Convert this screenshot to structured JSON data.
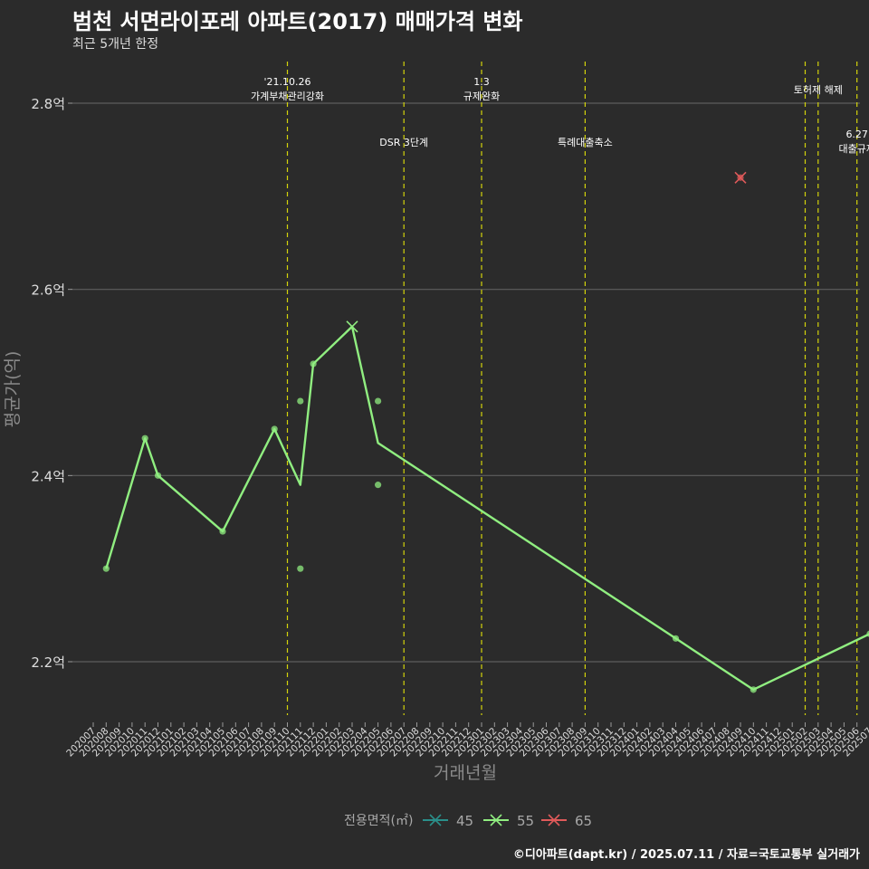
{
  "chart_data": {
    "type": "line",
    "title": "범천 서면라이포레 아파트(2017) 매매가격 변화",
    "subtitle": "최근 5개년 한정",
    "xlabel": "거래년월",
    "ylabel": "평균가(억)",
    "caption": "©디아파트(dapt.kr) / 2025.07.11 / 자료=국토교통부 실거래가",
    "x_ticks": [
      "202007",
      "202008",
      "202009",
      "202010",
      "202011",
      "202012",
      "202101",
      "202102",
      "202103",
      "202104",
      "202105",
      "202106",
      "202107",
      "202108",
      "202109",
      "202110",
      "202111",
      "202112",
      "202201",
      "202202",
      "202203",
      "202204",
      "202205",
      "202206",
      "202207",
      "202208",
      "202209",
      "202210",
      "202211",
      "202212",
      "202301",
      "202302",
      "202303",
      "202304",
      "202305",
      "202306",
      "202307",
      "202308",
      "202309",
      "202310",
      "202311",
      "202312",
      "202401",
      "202402",
      "202403",
      "202404",
      "202405",
      "202406",
      "202407",
      "202408",
      "202409",
      "202410",
      "202411",
      "202412",
      "202501",
      "202502",
      "202503",
      "202504",
      "202505",
      "202506",
      "202507"
    ],
    "y_ticks": [
      2.2,
      2.4,
      2.6,
      2.8
    ],
    "y_tick_labels": [
      "2.2억",
      "2.4억",
      "2.6억",
      "2.8억"
    ],
    "ylim": [
      2.14,
      2.85
    ],
    "legend": {
      "title": "전용면적(㎡)",
      "position": "bottom",
      "items": [
        {
          "label": "45",
          "color": "#2a8f8a"
        },
        {
          "label": "55",
          "color": "#90ee80"
        },
        {
          "label": "65",
          "color": "#e05a5a"
        }
      ]
    },
    "series": [
      {
        "name": "55",
        "color": "#90ee80",
        "line": [
          {
            "x": "202008",
            "y": 2.3
          },
          {
            "x": "202011",
            "y": 2.44
          },
          {
            "x": "202012",
            "y": 2.4
          },
          {
            "x": "202105",
            "y": 2.34
          },
          {
            "x": "202109",
            "y": 2.45
          },
          {
            "x": "202111",
            "y": 2.39
          },
          {
            "x": "202112",
            "y": 2.52
          },
          {
            "x": "202203",
            "y": 2.56
          },
          {
            "x": "202205",
            "y": 2.435
          },
          {
            "x": "202404",
            "y": 2.225
          },
          {
            "x": "202410",
            "y": 2.17
          },
          {
            "x": "202507",
            "y": 2.23
          }
        ],
        "points": [
          {
            "x": "202008",
            "y": 2.3
          },
          {
            "x": "202011",
            "y": 2.44
          },
          {
            "x": "202012",
            "y": 2.4
          },
          {
            "x": "202105",
            "y": 2.34
          },
          {
            "x": "202109",
            "y": 2.45
          },
          {
            "x": "202111",
            "y": 2.48
          },
          {
            "x": "202111",
            "y": 2.3
          },
          {
            "x": "202112",
            "y": 2.52
          },
          {
            "x": "202205",
            "y": 2.48
          },
          {
            "x": "202205",
            "y": 2.39
          },
          {
            "x": "202404",
            "y": 2.225
          },
          {
            "x": "202410",
            "y": 2.17
          },
          {
            "x": "202507",
            "y": 2.23
          }
        ],
        "cross_points": [
          {
            "x": "202203",
            "y": 2.56
          }
        ]
      },
      {
        "name": "65",
        "color": "#e05a5a",
        "points": [
          {
            "x": "202409",
            "y": 2.72
          }
        ],
        "cross_points": [
          {
            "x": "202409",
            "y": 2.72
          }
        ]
      }
    ],
    "events": [
      {
        "x": "202110",
        "lines": [
          "'21.10.26",
          "가계부채관리강화"
        ],
        "level": "top"
      },
      {
        "x": "202207",
        "lines": [
          "DSR 3단계"
        ],
        "level": "mid"
      },
      {
        "x": "202301",
        "lines": [
          "1.3",
          "규제완화"
        ],
        "level": "top"
      },
      {
        "x": "202309",
        "lines": [
          "특례대출축소"
        ],
        "level": "mid"
      },
      {
        "x": "202502",
        "lines": [],
        "level": "none"
      },
      {
        "x": "202503",
        "lines": [
          "토허제 해제"
        ],
        "level": "top2"
      },
      {
        "x": "202506",
        "lines": [
          "6.27",
          "대출규제"
        ],
        "level": "mid2"
      }
    ]
  }
}
